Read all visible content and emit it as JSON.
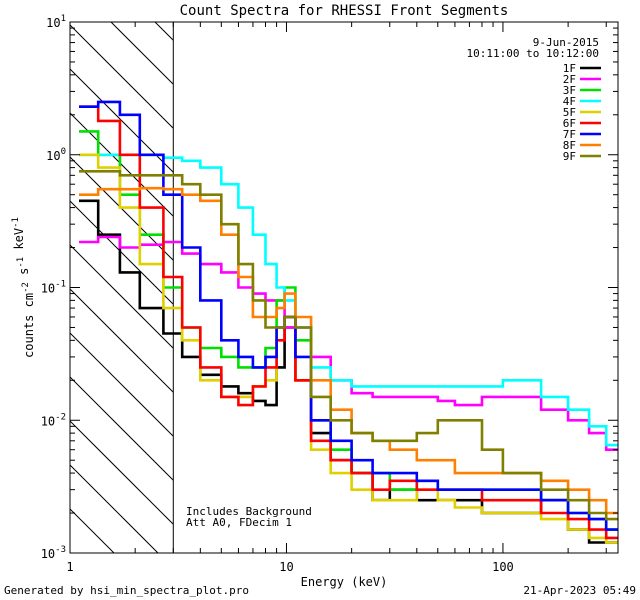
{
  "chart_data": {
    "type": "line",
    "title": "Count Spectra for RHESSI Front Segments",
    "xlabel": "Energy (keV)",
    "ylabel": "counts cm-2 s-1 keV-1",
    "xscale": "log",
    "yscale": "log",
    "xlim": [
      1,
      340
    ],
    "ylim": [
      0.001,
      10
    ],
    "x_ticks": [
      {
        "v": 1,
        "label": "1"
      },
      {
        "v": 10,
        "label": "10"
      },
      {
        "v": 100,
        "label": "100"
      }
    ],
    "y_ticks": [
      {
        "v": 10,
        "base": "10",
        "exp": "1"
      },
      {
        "v": 1,
        "base": "10",
        "exp": "0"
      },
      {
        "v": 0.1,
        "base": "10",
        "exp": "-1"
      },
      {
        "v": 0.01,
        "base": "10",
        "exp": "-2"
      },
      {
        "v": 0.001,
        "base": "10",
        "exp": "-3"
      }
    ],
    "date": "9-Jun-2015",
    "time_range": "10:11:00 to 10:12:00",
    "hatched_region_max_kev": 3,
    "annotations": [
      "Includes Background",
      "Att A0, FDecim 1"
    ],
    "series": [
      {
        "name": "1F",
        "color": "#000000",
        "energies": [
          1.1,
          1.35,
          1.7,
          2.1,
          2.7,
          3.3,
          4,
          5,
          6,
          7,
          8,
          9,
          9.8,
          11,
          13,
          16,
          20,
          25,
          30,
          40,
          50,
          60,
          80,
          100,
          150,
          200,
          250,
          300
        ],
        "values": [
          0.45,
          0.25,
          0.13,
          0.07,
          0.045,
          0.03,
          0.022,
          0.018,
          0.016,
          0.014,
          0.013,
          0.025,
          0.05,
          0.02,
          0.008,
          0.005,
          0.004,
          0.0025,
          0.003,
          0.0025,
          0.0025,
          0.0025,
          0.002,
          0.002,
          0.0025,
          0.0015,
          0.0012,
          0.0012
        ]
      },
      {
        "name": "2F",
        "color": "#ff00ff",
        "energies": [
          1.1,
          1.35,
          1.7,
          2.1,
          2.7,
          3.3,
          4,
          5,
          6,
          7,
          8,
          9,
          9.8,
          11,
          13,
          16,
          20,
          25,
          30,
          40,
          50,
          60,
          80,
          100,
          150,
          200,
          250,
          300
        ],
        "values": [
          0.22,
          0.24,
          0.2,
          0.21,
          0.22,
          0.18,
          0.15,
          0.13,
          0.1,
          0.09,
          0.08,
          0.08,
          0.05,
          0.05,
          0.03,
          0.02,
          0.016,
          0.015,
          0.015,
          0.015,
          0.014,
          0.013,
          0.015,
          0.015,
          0.012,
          0.01,
          0.008,
          0.006
        ]
      },
      {
        "name": "3F",
        "color": "#00e000",
        "energies": [
          1.1,
          1.35,
          1.7,
          2.1,
          2.7,
          3.3,
          4,
          5,
          6,
          7,
          8,
          9,
          9.8,
          11,
          13,
          16,
          20,
          25,
          30,
          40,
          50,
          60,
          80,
          100,
          150,
          200,
          250,
          300
        ],
        "values": [
          1.5,
          1.0,
          0.5,
          0.25,
          0.1,
          0.05,
          0.035,
          0.03,
          0.025,
          0.025,
          0.035,
          0.08,
          0.1,
          0.04,
          0.01,
          0.006,
          0.004,
          0.004,
          0.003,
          0.0035,
          0.003,
          0.003,
          0.003,
          0.003,
          0.0025,
          0.002,
          0.0018,
          0.0015
        ]
      },
      {
        "name": "4F",
        "color": "#00ffff",
        "energies": [
          1.1,
          1.35,
          1.7,
          2.1,
          2.7,
          3.3,
          4,
          5,
          6,
          7,
          8,
          9,
          9.8,
          11,
          13,
          16,
          20,
          25,
          30,
          40,
          50,
          60,
          80,
          100,
          150,
          200,
          250,
          300
        ],
        "values": [
          1.0,
          1.0,
          1.0,
          1.0,
          0.95,
          0.9,
          0.8,
          0.6,
          0.4,
          0.25,
          0.15,
          0.1,
          0.08,
          0.05,
          0.025,
          0.02,
          0.018,
          0.018,
          0.018,
          0.018,
          0.018,
          0.018,
          0.018,
          0.02,
          0.015,
          0.012,
          0.009,
          0.0065
        ]
      },
      {
        "name": "5F",
        "color": "#e0d000",
        "energies": [
          1.1,
          1.35,
          1.7,
          2.1,
          2.7,
          3.3,
          4,
          5,
          6,
          7,
          8,
          9,
          9.8,
          11,
          13,
          16,
          20,
          25,
          30,
          40,
          50,
          60,
          80,
          100,
          150,
          200,
          250,
          300
        ],
        "values": [
          1.0,
          0.8,
          0.4,
          0.15,
          0.07,
          0.04,
          0.02,
          0.015,
          0.015,
          0.018,
          0.02,
          0.05,
          0.06,
          0.02,
          0.006,
          0.004,
          0.003,
          0.0025,
          0.0025,
          0.003,
          0.0025,
          0.0022,
          0.002,
          0.002,
          0.0018,
          0.0015,
          0.0013,
          0.0012
        ]
      },
      {
        "name": "6F",
        "color": "#ff0000",
        "energies": [
          1.1,
          1.35,
          1.7,
          2.1,
          2.7,
          3.3,
          4,
          5,
          6,
          7,
          8,
          9,
          9.8,
          11,
          13,
          16,
          20,
          25,
          30,
          40,
          50,
          60,
          80,
          100,
          150,
          200,
          250,
          300
        ],
        "values": [
          2.3,
          1.8,
          1.0,
          0.4,
          0.12,
          0.05,
          0.025,
          0.015,
          0.013,
          0.018,
          0.025,
          0.04,
          0.06,
          0.02,
          0.007,
          0.005,
          0.004,
          0.003,
          0.0035,
          0.003,
          0.003,
          0.003,
          0.0025,
          0.0025,
          0.002,
          0.0018,
          0.0015,
          0.0013
        ]
      },
      {
        "name": "7F",
        "color": "#0000ff",
        "energies": [
          1.1,
          1.35,
          1.7,
          2.1,
          2.7,
          3.3,
          4,
          5,
          6,
          7,
          8,
          9,
          9.8,
          11,
          13,
          16,
          20,
          25,
          30,
          40,
          50,
          60,
          80,
          100,
          150,
          200,
          250,
          300
        ],
        "values": [
          2.3,
          2.5,
          2.0,
          1.0,
          0.5,
          0.2,
          0.08,
          0.04,
          0.03,
          0.025,
          0.03,
          0.05,
          0.06,
          0.03,
          0.01,
          0.007,
          0.005,
          0.004,
          0.004,
          0.0035,
          0.003,
          0.003,
          0.003,
          0.003,
          0.0025,
          0.002,
          0.0018,
          0.0015
        ]
      },
      {
        "name": "8F",
        "color": "#ff8000",
        "energies": [
          1.1,
          1.35,
          1.7,
          2.1,
          2.7,
          3.3,
          4,
          5,
          6,
          7,
          8,
          9,
          9.8,
          11,
          13,
          16,
          20,
          25,
          30,
          40,
          50,
          60,
          80,
          100,
          150,
          200,
          250,
          300
        ],
        "values": [
          0.5,
          0.55,
          0.55,
          0.56,
          0.55,
          0.5,
          0.45,
          0.25,
          0.12,
          0.06,
          0.06,
          0.07,
          0.09,
          0.06,
          0.02,
          0.012,
          0.008,
          0.007,
          0.006,
          0.005,
          0.005,
          0.004,
          0.004,
          0.004,
          0.0035,
          0.003,
          0.0025,
          0.002
        ]
      },
      {
        "name": "9F",
        "color": "#808000",
        "energies": [
          1.1,
          1.35,
          1.7,
          2.1,
          2.7,
          3.3,
          4,
          5,
          6,
          7,
          8,
          9,
          9.8,
          11,
          13,
          16,
          20,
          25,
          30,
          40,
          50,
          60,
          80,
          100,
          150,
          200,
          250,
          300
        ],
        "values": [
          0.75,
          0.75,
          0.7,
          0.7,
          0.7,
          0.6,
          0.5,
          0.3,
          0.15,
          0.08,
          0.05,
          0.05,
          0.06,
          0.05,
          0.015,
          0.01,
          0.008,
          0.007,
          0.007,
          0.008,
          0.01,
          0.01,
          0.006,
          0.004,
          0.003,
          0.0025,
          0.002,
          0.0018
        ]
      }
    ]
  },
  "footer": {
    "generated_by": "Generated by hsi_min_spectra_plot.pro",
    "timestamp": "21-Apr-2023 05:49"
  }
}
